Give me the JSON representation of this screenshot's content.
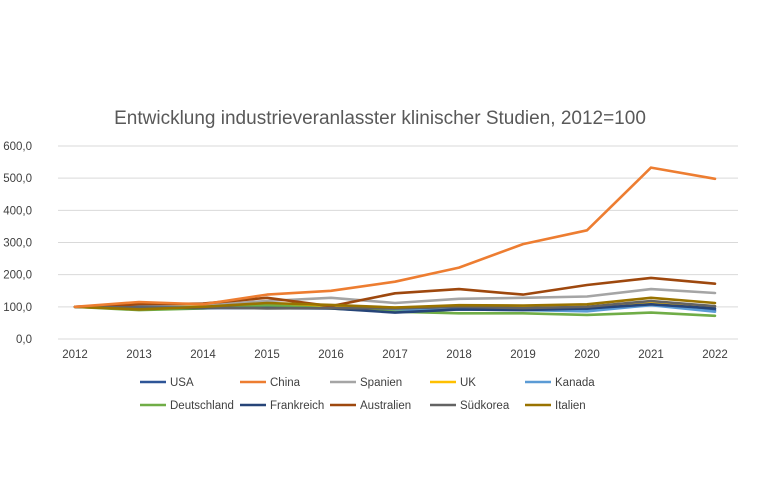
{
  "chart_data": {
    "type": "line",
    "title": "Entwicklung industrieveranlasster klinischer Studien, 2012=100",
    "xlabel": "",
    "ylabel": "",
    "categories": [
      "2012",
      "2013",
      "2014",
      "2015",
      "2016",
      "2017",
      "2018",
      "2019",
      "2020",
      "2021",
      "2022"
    ],
    "ylim": [
      0,
      600
    ],
    "yticks": [
      "0,0",
      "100,0",
      "200,0",
      "300,0",
      "400,0",
      "500,0",
      "600,0"
    ],
    "ytick_values": [
      0,
      100,
      200,
      300,
      400,
      500,
      600
    ],
    "grid": true,
    "legend_position": "bottom",
    "series": [
      {
        "name": "USA",
        "color": "#2e5597",
        "values": [
          100,
          105,
          100,
          98,
          96,
          92,
          95,
          97,
          90,
          110,
          90
        ]
      },
      {
        "name": "China",
        "color": "#ed7d31",
        "values": [
          100,
          115,
          108,
          138,
          150,
          178,
          222,
          295,
          338,
          533,
          498
        ]
      },
      {
        "name": "Spanien",
        "color": "#a5a5a5",
        "values": [
          100,
          102,
          105,
          118,
          128,
          112,
          125,
          128,
          132,
          155,
          143
        ]
      },
      {
        "name": "UK",
        "color": "#ffc000",
        "values": [
          100,
          98,
          100,
          105,
          100,
          98,
          102,
          100,
          96,
          115,
          102
        ]
      },
      {
        "name": "Kanada",
        "color": "#5b9bd5",
        "values": [
          100,
          100,
          98,
          96,
          95,
          88,
          92,
          90,
          86,
          105,
          85
        ]
      },
      {
        "name": "Deutschland",
        "color": "#70ad47",
        "values": [
          100,
          90,
          95,
          105,
          95,
          85,
          80,
          80,
          75,
          82,
          72
        ]
      },
      {
        "name": "Frankreich",
        "color": "#264478",
        "values": [
          100,
          98,
          96,
          96,
          95,
          82,
          92,
          90,
          95,
          108,
          95
        ]
      },
      {
        "name": "Australien",
        "color": "#9e480e",
        "values": [
          100,
          108,
          110,
          128,
          102,
          142,
          155,
          138,
          168,
          190,
          172
        ]
      },
      {
        "name": "Südkorea",
        "color": "#636363",
        "values": [
          100,
          98,
          98,
          95,
          96,
          95,
          100,
          96,
          100,
          118,
          102
        ]
      },
      {
        "name": "Italien",
        "color": "#997300",
        "values": [
          100,
          92,
          100,
          112,
          106,
          98,
          105,
          104,
          108,
          128,
          112
        ]
      }
    ]
  }
}
